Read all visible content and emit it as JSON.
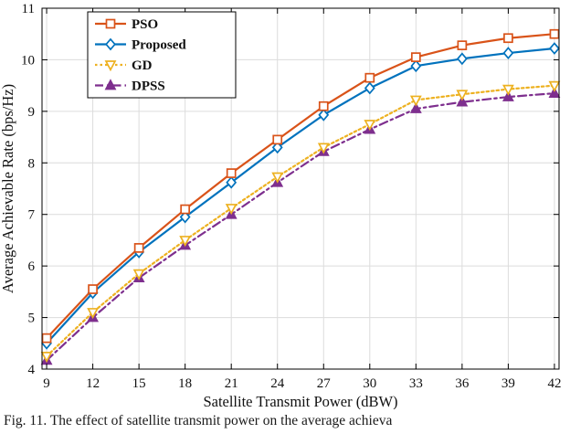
{
  "figure": {
    "caption": "Fig. 11.  The effect of satellite transmit power on the average achieva"
  },
  "chart_data": {
    "type": "line",
    "title": "",
    "xlabel": "Satellite Transmit Power (dBW)",
    "ylabel": "Average Achievable Rate (bps/Hz)",
    "x": [
      9,
      12,
      15,
      18,
      21,
      24,
      27,
      30,
      33,
      36,
      39,
      42
    ],
    "xticks": [
      9,
      12,
      15,
      18,
      21,
      24,
      27,
      30,
      33,
      36,
      39,
      42
    ],
    "yticks": [
      4,
      5,
      6,
      7,
      8,
      9,
      10,
      11
    ],
    "xlim": [
      8.7,
      42.3
    ],
    "ylim": [
      4,
      11
    ],
    "grid": true,
    "grid_color": "#DCDCDC",
    "axis_color": "#000000",
    "legend_position": "top-left",
    "series": [
      {
        "name": "PSO",
        "color": "#D95319",
        "line_style": "solid",
        "marker": "square",
        "marker_filled": false,
        "values": [
          4.6,
          5.55,
          6.35,
          7.1,
          7.8,
          8.45,
          9.1,
          9.65,
          10.05,
          10.28,
          10.42,
          10.5
        ]
      },
      {
        "name": "Proposed",
        "color": "#0072BD",
        "line_style": "solid",
        "marker": "diamond",
        "marker_filled": false,
        "values": [
          4.5,
          5.48,
          6.27,
          6.95,
          7.62,
          8.3,
          8.93,
          9.45,
          9.88,
          10.02,
          10.13,
          10.22
        ]
      },
      {
        "name": "GD",
        "color": "#EDB120",
        "line_style": "dotted",
        "marker": "triangle-down",
        "marker_filled": false,
        "values": [
          4.25,
          5.1,
          5.85,
          6.5,
          7.12,
          7.73,
          8.3,
          8.75,
          9.22,
          9.33,
          9.43,
          9.5
        ]
      },
      {
        "name": "DPSS",
        "color": "#7E2F8E",
        "line_style": "dashdot",
        "marker": "triangle-up",
        "marker_filled": true,
        "values": [
          4.17,
          5.0,
          5.77,
          6.4,
          7.0,
          7.62,
          8.22,
          8.65,
          9.05,
          9.18,
          9.28,
          9.35
        ]
      }
    ]
  }
}
